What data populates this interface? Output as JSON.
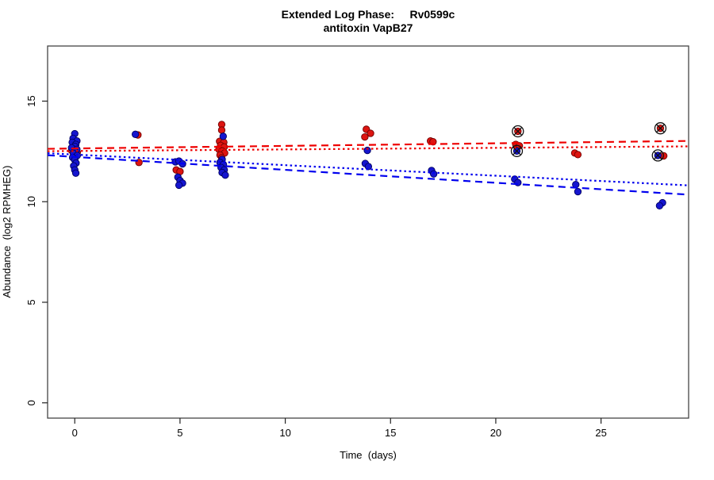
{
  "title": {
    "line1": "Extended Log Phase:     Rv0599c",
    "line2": "antitoxin VapB27"
  },
  "axes": {
    "x": {
      "label": "Time  (days)",
      "ticks": [
        0,
        5,
        10,
        15,
        20,
        25
      ]
    },
    "y": {
      "label": "Abundance  (log2 RPMHEG)",
      "ticks": [
        0,
        5,
        10,
        15
      ]
    }
  },
  "colors": {
    "red": "#dd1511",
    "red_edge": "#700000",
    "blue": "#1515cf",
    "blue_edge": "#000060",
    "red_line": "#ee0000",
    "blue_line": "#0000ee",
    "ring": "#111111",
    "box": "#444444",
    "tick": "#222222"
  },
  "chart_data": {
    "type": "scatter",
    "title": "Extended Log Phase: Rv0599c / antitoxin VapB27",
    "xlabel": "Time (days)",
    "ylabel": "Abundance (log2 RPMHEG)",
    "xlim": [
      -1.29,
      29.16
    ],
    "ylim": [
      -0.76,
      17.74
    ],
    "grid": false,
    "legend": "none",
    "series": [
      {
        "name": "red-condition",
        "color_key": "red",
        "edge_key": "red_edge",
        "points": [
          [
            -0.15,
            12.55
          ],
          [
            0.12,
            12.45
          ],
          [
            3.0,
            13.32
          ],
          [
            3.05,
            11.95
          ],
          [
            4.82,
            11.58
          ],
          [
            5.0,
            11.5
          ],
          [
            6.98,
            13.84
          ],
          [
            6.98,
            13.56
          ],
          [
            6.88,
            13.0
          ],
          [
            7.08,
            12.95
          ],
          [
            6.93,
            12.8
          ],
          [
            7.1,
            12.72
          ],
          [
            6.85,
            12.6
          ],
          [
            7.0,
            12.52
          ],
          [
            7.12,
            12.42
          ],
          [
            6.9,
            12.32
          ],
          [
            6.98,
            12.18
          ],
          [
            13.85,
            13.6
          ],
          [
            14.05,
            13.4
          ],
          [
            13.78,
            13.22
          ],
          [
            16.9,
            13.02
          ],
          [
            17.02,
            12.98
          ],
          [
            21.05,
            13.5
          ],
          [
            20.95,
            12.85
          ],
          [
            21.12,
            12.78
          ],
          [
            23.75,
            12.42
          ],
          [
            23.9,
            12.34
          ],
          [
            27.82,
            13.65
          ],
          [
            27.98,
            12.28
          ]
        ]
      },
      {
        "name": "blue-condition",
        "color_key": "blue",
        "edge_key": "blue_edge",
        "points": [
          [
            0.0,
            13.38
          ],
          [
            -0.08,
            13.15
          ],
          [
            0.1,
            13.02
          ],
          [
            -0.12,
            12.95
          ],
          [
            0.05,
            12.85
          ],
          [
            0.0,
            12.75
          ],
          [
            -0.15,
            12.68
          ],
          [
            0.1,
            12.6
          ],
          [
            0.0,
            12.5
          ],
          [
            -0.06,
            12.4
          ],
          [
            0.12,
            12.3
          ],
          [
            -0.1,
            12.2
          ],
          [
            0.0,
            12.08
          ],
          [
            0.06,
            11.92
          ],
          [
            -0.05,
            11.78
          ],
          [
            0.0,
            11.58
          ],
          [
            0.05,
            11.42
          ],
          [
            2.88,
            13.35
          ],
          [
            4.78,
            11.98
          ],
          [
            4.95,
            12.02
          ],
          [
            5.12,
            11.88
          ],
          [
            4.9,
            11.22
          ],
          [
            5.0,
            11.05
          ],
          [
            5.12,
            10.92
          ],
          [
            4.95,
            10.82
          ],
          [
            7.05,
            13.25
          ],
          [
            7.0,
            12.1
          ],
          [
            6.9,
            11.95
          ],
          [
            7.06,
            11.85
          ],
          [
            6.95,
            11.7
          ],
          [
            7.1,
            11.58
          ],
          [
            7.0,
            11.45
          ],
          [
            7.15,
            11.32
          ],
          [
            13.9,
            12.55
          ],
          [
            13.8,
            11.9
          ],
          [
            13.95,
            11.75
          ],
          [
            16.95,
            11.55
          ],
          [
            17.05,
            11.38
          ],
          [
            21.0,
            12.52
          ],
          [
            20.9,
            11.12
          ],
          [
            21.05,
            10.95
          ],
          [
            23.8,
            10.85
          ],
          [
            23.9,
            10.5
          ],
          [
            27.7,
            12.3
          ],
          [
            27.92,
            9.95
          ],
          [
            27.78,
            9.8
          ]
        ]
      }
    ],
    "highlighted_points": [
      {
        "series": "red-condition",
        "day": 21.05,
        "value": 13.5
      },
      {
        "series": "blue-condition",
        "day": 21.0,
        "value": 12.52
      },
      {
        "series": "red-condition",
        "day": 27.82,
        "value": 13.65
      },
      {
        "series": "blue-condition",
        "day": 27.7,
        "value": 12.3
      }
    ],
    "trend_lines": [
      {
        "name": "red-dashed-fit",
        "color_key": "red_line",
        "style": "dashed",
        "x": [
          -1.29,
          29.16
        ],
        "y": [
          12.63,
          13.02
        ]
      },
      {
        "name": "red-dotted-fit",
        "color_key": "red_line",
        "style": "dotted",
        "x": [
          -1.29,
          29.16
        ],
        "y": [
          12.51,
          12.75
        ]
      },
      {
        "name": "blue-dotted-fit",
        "color_key": "blue_line",
        "style": "dotted",
        "x": [
          -1.29,
          29.16
        ],
        "y": [
          12.41,
          10.81
        ]
      },
      {
        "name": "blue-dashed-fit",
        "color_key": "blue_line",
        "style": "dashed",
        "x": [
          -1.29,
          29.16
        ],
        "y": [
          12.31,
          10.35
        ]
      }
    ]
  }
}
